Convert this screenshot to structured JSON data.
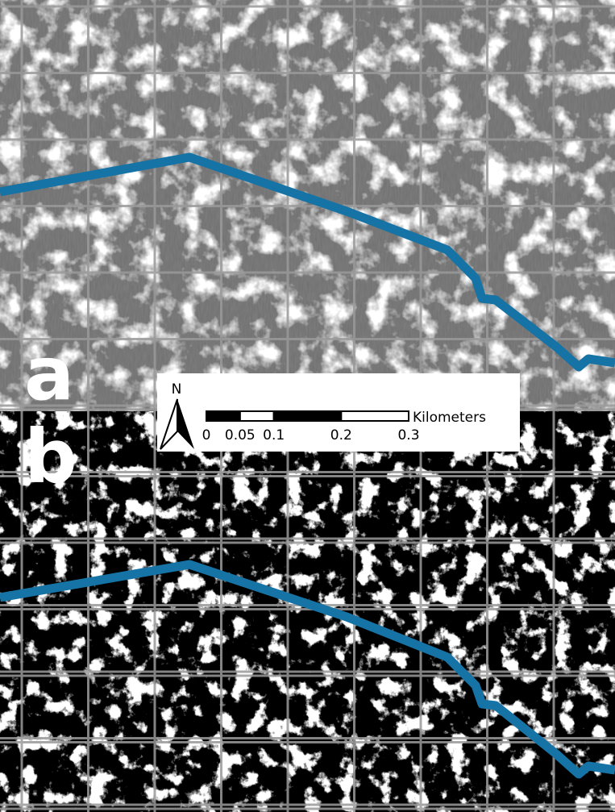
{
  "panels": [
    {
      "label": "a"
    },
    {
      "label": "b"
    }
  ],
  "north_arrow": {
    "label": "N"
  },
  "scale_bar": {
    "unit": "Kilometers",
    "ticks": [
      0,
      0.05,
      0.1,
      0.2,
      0.3
    ]
  }
}
